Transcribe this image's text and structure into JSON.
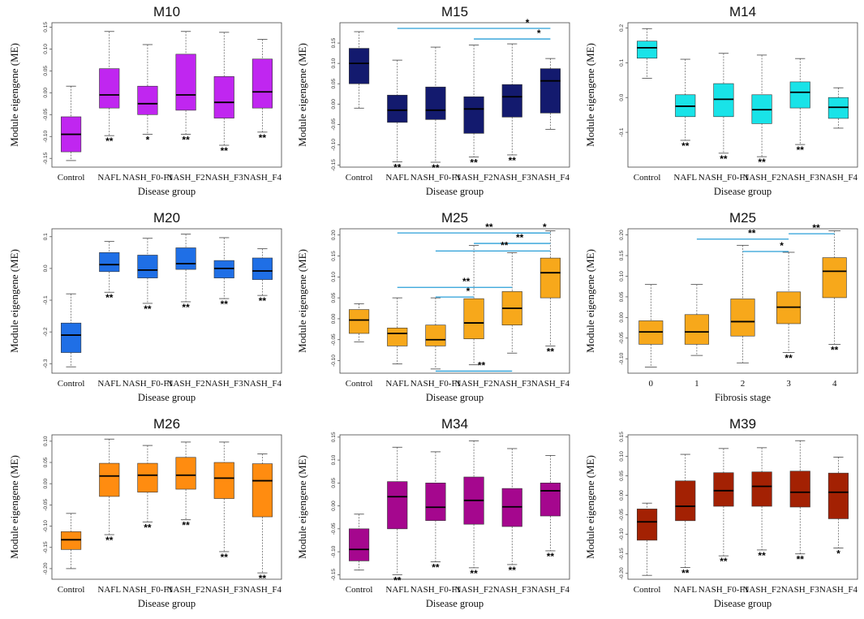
{
  "figure": {
    "panels": [
      {
        "title": "M10",
        "ylabel": "Module eigengene (ME)",
        "xlabel": "Disease group",
        "color": "#c026f0",
        "ylim": [
          -0.17,
          0.16
        ],
        "ticks": [
          0.15,
          0.1,
          0.05,
          0.0,
          -0.05,
          -0.1,
          -0.15
        ],
        "tick_labels": [
          "0.15",
          "0.10",
          "0.05",
          "0.00",
          "-0.05",
          "-0.10",
          "-0.15"
        ],
        "categories": [
          "Control",
          "NAFL",
          "NASH_F0-F1",
          "NASH_F2",
          "NASH_F3",
          "NASH_F4"
        ],
        "boxes": [
          [
            -0.155,
            -0.135,
            -0.095,
            -0.055,
            0.015
          ],
          [
            -0.098,
            -0.035,
            -0.005,
            0.055,
            0.14
          ],
          [
            -0.095,
            -0.05,
            -0.025,
            0.015,
            0.11
          ],
          [
            -0.095,
            -0.04,
            -0.005,
            0.088,
            0.14
          ],
          [
            -0.12,
            -0.058,
            -0.022,
            0.037,
            0.138
          ],
          [
            -0.09,
            -0.035,
            0.002,
            0.077,
            0.122
          ]
        ],
        "sig": [
          "",
          "**",
          "*",
          "**",
          "**",
          "**"
        ],
        "comparisons": []
      },
      {
        "title": "M15",
        "ylabel": "Module eigengene (ME)",
        "xlabel": "Disease group",
        "color": "#131a6e",
        "ylim": [
          -0.155,
          0.2
        ],
        "ticks": [
          0.15,
          0.1,
          0.05,
          0.0,
          -0.05,
          -0.1,
          -0.15
        ],
        "tick_labels": [
          "0.15",
          "0.10",
          "0.05",
          "0.00",
          "-0.05",
          "-0.10",
          "-0.15"
        ],
        "categories": [
          "Control",
          "NAFL",
          "NASH_F0-F1",
          "NASH_F2",
          "NASH_F3",
          "NASH_F4"
        ],
        "boxes": [
          [
            -0.01,
            0.05,
            0.1,
            0.137,
            0.178
          ],
          [
            -0.142,
            -0.045,
            -0.015,
            0.022,
            0.108
          ],
          [
            -0.143,
            -0.038,
            -0.015,
            0.042,
            0.14
          ],
          [
            -0.13,
            -0.072,
            -0.012,
            0.018,
            0.145
          ],
          [
            -0.125,
            -0.032,
            0.018,
            0.048,
            0.148
          ],
          [
            -0.062,
            -0.022,
            0.057,
            0.087,
            0.112
          ]
        ],
        "sig": [
          "",
          "**",
          "**",
          "**",
          "**",
          ""
        ],
        "comparisons": [
          {
            "from": 1,
            "to": 5,
            "y": 0.186,
            "label": "*"
          },
          {
            "from": 3,
            "to": 5,
            "y": 0.16,
            "label": "*"
          }
        ]
      },
      {
        "title": "M14",
        "ylabel": "Module eigengene (ME)",
        "xlabel": "Disease group",
        "color": "#19e3e8",
        "ylim": [
          -0.2,
          0.215
        ],
        "ticks": [
          0.2,
          0.1,
          0.0,
          -0.1
        ],
        "tick_labels": [
          "0.2",
          "0.1",
          "0.0",
          "-0.1"
        ],
        "categories": [
          "Control",
          "NAFL",
          "NASH_F0-F1",
          "NASH_F2",
          "NASH_F3",
          "NASH_F4"
        ],
        "boxes": [
          [
            0.055,
            0.113,
            0.143,
            0.162,
            0.198
          ],
          [
            -0.123,
            -0.055,
            -0.025,
            0.008,
            0.11
          ],
          [
            -0.16,
            -0.055,
            -0.005,
            0.04,
            0.127
          ],
          [
            -0.17,
            -0.075,
            -0.035,
            0.008,
            0.122
          ],
          [
            -0.135,
            -0.03,
            0.015,
            0.045,
            0.112
          ],
          [
            -0.088,
            -0.06,
            -0.028,
            0.0,
            0.028
          ]
        ],
        "sig": [
          "",
          "**",
          "**",
          "**",
          "**",
          ""
        ],
        "comparisons": []
      },
      {
        "title": "M20",
        "ylabel": "Module eigengene (ME)",
        "xlabel": "Disease group",
        "color": "#1f6fe6",
        "ylim": [
          -0.33,
          0.125
        ],
        "ticks": [
          0.1,
          0.0,
          -0.1,
          -0.2,
          -0.3
        ],
        "tick_labels": [
          "0.1",
          "0.0",
          "-0.1",
          "-0.2",
          "-0.3"
        ],
        "categories": [
          "Control",
          "NAFL",
          "NASH_F0-F1",
          "NASH_F2",
          "NASH_F3",
          "NASH_F4"
        ],
        "boxes": [
          [
            -0.31,
            -0.265,
            -0.21,
            -0.172,
            -0.08
          ],
          [
            -0.075,
            -0.01,
            0.012,
            0.05,
            0.085
          ],
          [
            -0.11,
            -0.03,
            -0.005,
            0.042,
            0.095
          ],
          [
            -0.105,
            -0.003,
            0.015,
            0.065,
            0.108
          ],
          [
            -0.095,
            -0.03,
            0.0,
            0.025,
            0.097
          ],
          [
            -0.085,
            -0.035,
            -0.008,
            0.033,
            0.062
          ]
        ],
        "sig": [
          "",
          "**",
          "**",
          "**",
          "**",
          "**"
        ],
        "comparisons": []
      },
      {
        "title": "M25",
        "ylabel": "Module eigengene (ME)",
        "xlabel": "Disease group",
        "color": "#f7a81b",
        "ylim": [
          -0.13,
          0.215
        ],
        "ticks": [
          0.2,
          0.15,
          0.1,
          0.05,
          0.0,
          -0.05,
          -0.1
        ],
        "tick_labels": [
          "0.20",
          "0.15",
          "0.10",
          "0.05",
          "0.00",
          "-0.05",
          "-0.10"
        ],
        "categories": [
          "Control",
          "NAFL",
          "NASH_F0-F1",
          "NASH_F2",
          "NASH_F3",
          "NASH_F4"
        ],
        "boxes": [
          [
            -0.055,
            -0.035,
            -0.003,
            0.022,
            0.036
          ],
          [
            -0.108,
            -0.065,
            -0.035,
            -0.022,
            0.05
          ],
          [
            -0.12,
            -0.065,
            -0.05,
            -0.015,
            0.05
          ],
          [
            -0.11,
            -0.048,
            -0.01,
            0.048,
            0.175
          ],
          [
            -0.082,
            -0.015,
            0.025,
            0.065,
            0.158
          ],
          [
            -0.065,
            0.05,
            0.11,
            0.145,
            0.21
          ]
        ],
        "sig": [
          "",
          "",
          "",
          "",
          "",
          "**"
        ],
        "comparisons": [
          {
            "from": 1,
            "to": 5,
            "y": 0.205,
            "label": "**"
          },
          {
            "from": 4,
            "to": 5,
            "y": 0.205,
            "label": "*"
          },
          {
            "from": 3,
            "to": 5,
            "y": 0.18,
            "label": "**"
          },
          {
            "from": 2,
            "to": 5,
            "y": 0.162,
            "label": "**"
          },
          {
            "from": 1,
            "to": 4,
            "y": 0.075,
            "label": "**"
          },
          {
            "from": 2,
            "to": 3,
            "y": 0.052,
            "label": "*"
          },
          {
            "from": 2,
            "to": 4,
            "y": -0.125,
            "label": "**"
          }
        ]
      },
      {
        "title": "M25",
        "ylabel": "Module eigengene (ME)",
        "xlabel": "Fibrosis stage",
        "color": "#f7a81b",
        "ylim": [
          -0.135,
          0.215
        ],
        "ticks": [
          0.2,
          0.15,
          0.1,
          0.05,
          0.0,
          -0.05,
          -0.1
        ],
        "tick_labels": [
          "0.20",
          "0.15",
          "0.10",
          "0.05",
          "0.00",
          "-0.05",
          "-0.10"
        ],
        "categories": [
          "0",
          "1",
          "2",
          "3",
          "4"
        ],
        "boxes": [
          [
            -0.12,
            -0.065,
            -0.035,
            -0.008,
            0.08
          ],
          [
            -0.092,
            -0.065,
            -0.035,
            0.007,
            0.08
          ],
          [
            -0.11,
            -0.045,
            -0.01,
            0.045,
            0.175
          ],
          [
            -0.085,
            -0.015,
            0.025,
            0.062,
            0.158
          ],
          [
            -0.065,
            0.048,
            0.112,
            0.145,
            0.21
          ]
        ],
        "sig": [
          "",
          "",
          "",
          "**",
          "**"
        ],
        "comparisons": [
          {
            "from": 1,
            "to": 3,
            "y": 0.19,
            "label": "**"
          },
          {
            "from": 2,
            "to": 3,
            "y": 0.16,
            "label": "*"
          },
          {
            "from": 3,
            "to": 4,
            "y": 0.203,
            "label": "**"
          }
        ]
      },
      {
        "title": "M26",
        "ylabel": "Module eigengene (ME)",
        "xlabel": "Disease group",
        "color": "#ff8c10",
        "ylim": [
          -0.225,
          0.115
        ],
        "ticks": [
          0.1,
          0.05,
          0.0,
          -0.05,
          -0.1,
          -0.15,
          -0.2
        ],
        "tick_labels": [
          "0.10",
          "0.05",
          "0.00",
          "-0.05",
          "-0.10",
          "-0.15",
          "-0.20"
        ],
        "categories": [
          "Control",
          "NAFL",
          "NASH_F0-F1",
          "NASH_F2",
          "NASH_F3",
          "NASH_F4"
        ],
        "boxes": [
          [
            -0.2,
            -0.155,
            -0.132,
            -0.113,
            -0.07
          ],
          [
            -0.12,
            -0.03,
            0.018,
            0.048,
            0.105
          ],
          [
            -0.09,
            -0.02,
            0.02,
            0.048,
            0.09
          ],
          [
            -0.085,
            -0.013,
            0.02,
            0.062,
            0.098
          ],
          [
            -0.16,
            -0.035,
            0.013,
            0.05,
            0.098
          ],
          [
            -0.21,
            -0.078,
            0.007,
            0.047,
            0.07
          ]
        ],
        "sig": [
          "",
          "**",
          "**",
          "**",
          "**",
          "**"
        ],
        "comparisons": []
      },
      {
        "title": "M34",
        "ylabel": "Module eigengene (ME)",
        "xlabel": "Disease group",
        "color": "#a5078e",
        "ylim": [
          -0.16,
          0.155
        ],
        "ticks": [
          0.15,
          0.1,
          0.05,
          0.0,
          -0.05,
          -0.1,
          -0.15
        ],
        "tick_labels": [
          "0.15",
          "0.10",
          "0.05",
          "0.00",
          "-0.05",
          "-0.10",
          "-0.15"
        ],
        "categories": [
          "Control",
          "NAFL",
          "NASH_F0-F1",
          "NASH_F2",
          "NASH_F3",
          "NASH_F4"
        ],
        "boxes": [
          [
            -0.14,
            -0.12,
            -0.095,
            -0.05,
            -0.018
          ],
          [
            -0.15,
            -0.05,
            0.02,
            0.053,
            0.128
          ],
          [
            -0.122,
            -0.032,
            -0.003,
            0.05,
            0.118
          ],
          [
            -0.135,
            -0.04,
            0.012,
            0.063,
            0.142
          ],
          [
            -0.128,
            -0.045,
            -0.002,
            0.038,
            0.125
          ],
          [
            -0.098,
            -0.022,
            0.033,
            0.05,
            0.11
          ]
        ],
        "sig": [
          "",
          "**",
          "**",
          "**",
          "**",
          "**"
        ],
        "comparisons": []
      },
      {
        "title": "M39",
        "ylabel": "Module eigengene (ME)",
        "xlabel": "Disease group",
        "color": "#a32103",
        "ylim": [
          -0.215,
          0.155
        ],
        "ticks": [
          0.15,
          0.1,
          0.05,
          0.0,
          -0.05,
          -0.1,
          -0.15,
          -0.2
        ],
        "tick_labels": [
          "0.15",
          "0.10",
          "0.05",
          "0.00",
          "-0.05",
          "-0.10",
          "-0.15",
          "-0.20"
        ],
        "categories": [
          "Control",
          "NAFL",
          "NASH_F0-F1",
          "NASH_F2",
          "NASH_F3",
          "NASH_F4"
        ],
        "boxes": [
          [
            -0.205,
            -0.115,
            -0.068,
            -0.035,
            -0.02
          ],
          [
            -0.185,
            -0.065,
            -0.028,
            0.037,
            0.105
          ],
          [
            -0.155,
            -0.028,
            0.012,
            0.058,
            0.12
          ],
          [
            -0.14,
            -0.028,
            0.023,
            0.06,
            0.122
          ],
          [
            -0.15,
            -0.03,
            0.008,
            0.062,
            0.14
          ],
          [
            -0.135,
            -0.06,
            0.008,
            0.057,
            0.098
          ]
        ],
        "sig": [
          "",
          "**",
          "**",
          "**",
          "**",
          "*"
        ],
        "comparisons": []
      }
    ]
  },
  "chart_data": [
    {
      "type": "box",
      "title": "M10",
      "xlabel": "Disease group",
      "ylabel": "Module eigengene (ME)",
      "categories": [
        "Control",
        "NAFL",
        "NASH_F0-F1",
        "NASH_F2",
        "NASH_F3",
        "NASH_F4"
      ],
      "stats_order": "min,q1,median,q3,max",
      "ylim": [
        -0.17,
        0.16
      ]
    },
    {
      "type": "box",
      "title": "M15",
      "xlabel": "Disease group",
      "ylabel": "Module eigengene (ME)",
      "categories": [
        "Control",
        "NAFL",
        "NASH_F0-F1",
        "NASH_F2",
        "NASH_F3",
        "NASH_F4"
      ],
      "stats_order": "min,q1,median,q3,max",
      "ylim": [
        -0.155,
        0.2
      ]
    },
    {
      "type": "box",
      "title": "M14",
      "xlabel": "Disease group",
      "ylabel": "Module eigengene (ME)",
      "categories": [
        "Control",
        "NAFL",
        "NASH_F0-F1",
        "NASH_F2",
        "NASH_F3",
        "NASH_F4"
      ],
      "stats_order": "min,q1,median,q3,max",
      "ylim": [
        -0.2,
        0.215
      ]
    },
    {
      "type": "box",
      "title": "M20",
      "xlabel": "Disease group",
      "ylabel": "Module eigengene (ME)",
      "categories": [
        "Control",
        "NAFL",
        "NASH_F0-F1",
        "NASH_F2",
        "NASH_F3",
        "NASH_F4"
      ],
      "stats_order": "min,q1,median,q3,max",
      "ylim": [
        -0.33,
        0.125
      ]
    },
    {
      "type": "box",
      "title": "M25",
      "xlabel": "Disease group",
      "ylabel": "Module eigengene (ME)",
      "categories": [
        "Control",
        "NAFL",
        "NASH_F0-F1",
        "NASH_F2",
        "NASH_F3",
        "NASH_F4"
      ],
      "stats_order": "min,q1,median,q3,max",
      "ylim": [
        -0.13,
        0.215
      ]
    },
    {
      "type": "box",
      "title": "M25",
      "xlabel": "Fibrosis stage",
      "ylabel": "Module eigengene (ME)",
      "categories": [
        "0",
        "1",
        "2",
        "3",
        "4"
      ],
      "stats_order": "min,q1,median,q3,max",
      "ylim": [
        -0.135,
        0.215
      ]
    },
    {
      "type": "box",
      "title": "M26",
      "xlabel": "Disease group",
      "ylabel": "Module eigengene (ME)",
      "categories": [
        "Control",
        "NAFL",
        "NASH_F0-F1",
        "NASH_F2",
        "NASH_F3",
        "NASH_F4"
      ],
      "stats_order": "min,q1,median,q3,max",
      "ylim": [
        -0.225,
        0.115
      ]
    },
    {
      "type": "box",
      "title": "M34",
      "xlabel": "Disease group",
      "ylabel": "Module eigengene (ME)",
      "categories": [
        "Control",
        "NAFL",
        "NASH_F0-F1",
        "NASH_F2",
        "NASH_F3",
        "NASH_F4"
      ],
      "stats_order": "min,q1,median,q3,max",
      "ylim": [
        -0.16,
        0.155
      ]
    },
    {
      "type": "box",
      "title": "M39",
      "xlabel": "Disease group",
      "ylabel": "Module eigengene (ME)",
      "categories": [
        "Control",
        "NAFL",
        "NASH_F0-F1",
        "NASH_F2",
        "NASH_F3",
        "NASH_F4"
      ],
      "stats_order": "min,q1,median,q3,max",
      "ylim": [
        -0.215,
        0.155
      ]
    }
  ]
}
